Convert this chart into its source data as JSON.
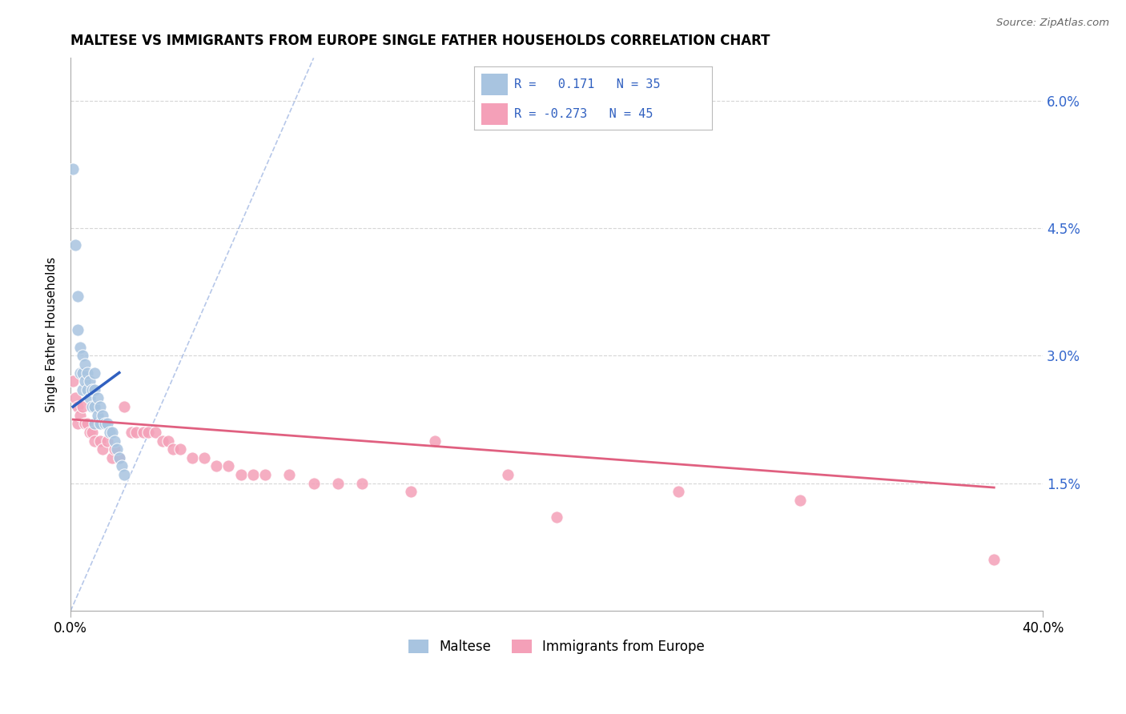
{
  "title": "MALTESE VS IMMIGRANTS FROM EUROPE SINGLE FATHER HOUSEHOLDS CORRELATION CHART",
  "source": "Source: ZipAtlas.com",
  "ylabel": "Single Father Households",
  "ytick_labels": [
    "1.5%",
    "3.0%",
    "4.5%",
    "6.0%"
  ],
  "ytick_values": [
    0.015,
    0.03,
    0.045,
    0.06
  ],
  "xlim": [
    0.0,
    0.4
  ],
  "ylim": [
    0.0,
    0.065
  ],
  "maltese_R": 0.171,
  "maltese_N": 35,
  "immigrants_R": -0.273,
  "immigrants_N": 45,
  "maltese_color": "#a8c4e0",
  "immigrants_color": "#f4a0b8",
  "maltese_line_color": "#3060c0",
  "immigrants_line_color": "#e06080",
  "background_color": "#ffffff",
  "grid_color": "#cccccc",
  "maltese_x": [
    0.001,
    0.002,
    0.003,
    0.003,
    0.004,
    0.004,
    0.005,
    0.005,
    0.005,
    0.006,
    0.006,
    0.007,
    0.007,
    0.008,
    0.008,
    0.009,
    0.009,
    0.01,
    0.01,
    0.01,
    0.01,
    0.011,
    0.011,
    0.012,
    0.012,
    0.013,
    0.014,
    0.015,
    0.016,
    0.017,
    0.018,
    0.019,
    0.02,
    0.021,
    0.022
  ],
  "maltese_y": [
    0.052,
    0.043,
    0.037,
    0.033,
    0.031,
    0.028,
    0.03,
    0.028,
    0.026,
    0.029,
    0.027,
    0.028,
    0.026,
    0.027,
    0.025,
    0.026,
    0.024,
    0.028,
    0.026,
    0.024,
    0.022,
    0.025,
    0.023,
    0.024,
    0.022,
    0.023,
    0.022,
    0.022,
    0.021,
    0.021,
    0.02,
    0.019,
    0.018,
    0.017,
    0.016
  ],
  "immigrants_x": [
    0.001,
    0.002,
    0.003,
    0.003,
    0.004,
    0.005,
    0.006,
    0.007,
    0.008,
    0.009,
    0.01,
    0.012,
    0.013,
    0.015,
    0.017,
    0.018,
    0.02,
    0.022,
    0.025,
    0.027,
    0.03,
    0.032,
    0.035,
    0.038,
    0.04,
    0.042,
    0.045,
    0.05,
    0.055,
    0.06,
    0.065,
    0.07,
    0.075,
    0.08,
    0.09,
    0.1,
    0.11,
    0.12,
    0.14,
    0.15,
    0.18,
    0.2,
    0.25,
    0.3,
    0.38
  ],
  "immigrants_y": [
    0.027,
    0.025,
    0.024,
    0.022,
    0.023,
    0.024,
    0.022,
    0.022,
    0.021,
    0.021,
    0.02,
    0.02,
    0.019,
    0.02,
    0.018,
    0.019,
    0.018,
    0.024,
    0.021,
    0.021,
    0.021,
    0.021,
    0.021,
    0.02,
    0.02,
    0.019,
    0.019,
    0.018,
    0.018,
    0.017,
    0.017,
    0.016,
    0.016,
    0.016,
    0.016,
    0.015,
    0.015,
    0.015,
    0.014,
    0.02,
    0.016,
    0.011,
    0.014,
    0.013,
    0.006
  ],
  "maltese_line_x": [
    0.001,
    0.02
  ],
  "maltese_line_y": [
    0.024,
    0.028
  ],
  "immigrants_line_x": [
    0.001,
    0.38
  ],
  "immigrants_line_y": [
    0.0225,
    0.0145
  ],
  "diag_line_x": [
    0.0,
    0.1
  ],
  "diag_line_y": [
    0.0,
    0.065
  ]
}
